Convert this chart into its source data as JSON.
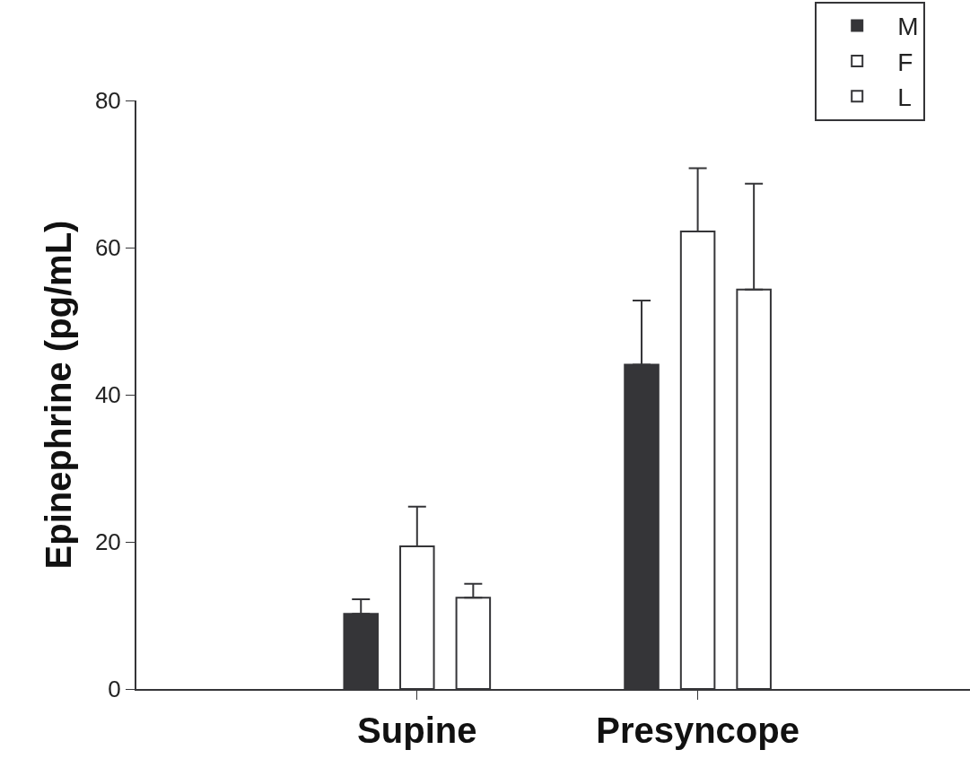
{
  "chart_data": {
    "type": "bar",
    "ylabel": "Epinephrine (pg/mL)",
    "categories": [
      "Supine",
      "Presyncope"
    ],
    "series": [
      {
        "name": "M",
        "color": "#353538",
        "values": [
          10.2,
          44.1
        ],
        "errors": [
          [
            10.2,
            12.2
          ],
          [
            44.1,
            52.8
          ]
        ]
      },
      {
        "name": "F",
        "color": "#ffffff",
        "values": [
          19.4,
          62.2
        ],
        "errors": [
          [
            19.4,
            24.8
          ],
          [
            62.2,
            70.8
          ]
        ]
      },
      {
        "name": "L",
        "color": "#ffffff",
        "values": [
          12.4,
          54.3
        ],
        "errors": [
          [
            12.4,
            14.3
          ],
          [
            54.3,
            68.7
          ]
        ]
      }
    ],
    "ylim": [
      0,
      80
    ],
    "yticks": [
      0,
      20,
      40,
      60,
      80
    ],
    "legend": "top right"
  }
}
